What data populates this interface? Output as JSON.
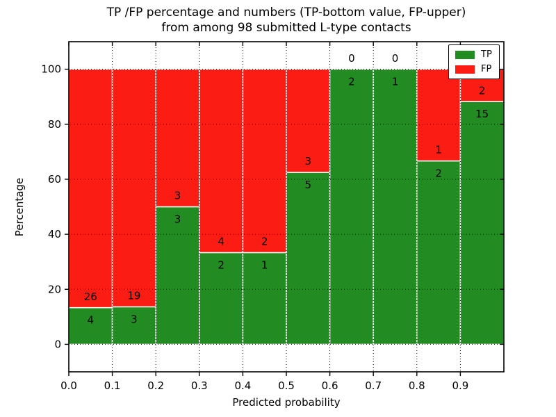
{
  "title": {
    "line1": "TP /FP percentage and numbers (TP-bottom value, FP-upper)",
    "line2": "from among 98 submitted L-type contacts"
  },
  "chart_data": {
    "type": "bar",
    "stacked": true,
    "normalized_to_percent": 100,
    "total_contacts": 98,
    "title": "TP /FP percentage and numbers (TP-bottom value, FP-upper) from among 98 submitted L-type contacts",
    "xlabel": "Predicted probability",
    "ylabel": "Percentage",
    "xlim": [
      0.0,
      1.0
    ],
    "ylim": [
      -10,
      110
    ],
    "bin_width": 0.1,
    "bin_starts": [
      0.0,
      0.1,
      0.2,
      0.3,
      0.4,
      0.5,
      0.6,
      0.7,
      0.8,
      0.9
    ],
    "xticks": [
      "0.0",
      "0.1",
      "0.2",
      "0.3",
      "0.4",
      "0.5",
      "0.6",
      "0.7",
      "0.8",
      "0.9"
    ],
    "yticks": [
      0,
      20,
      40,
      60,
      80,
      100
    ],
    "xgrid": [
      0.1,
      0.2,
      0.3,
      0.4,
      0.5,
      0.6,
      0.7,
      0.8,
      0.9
    ],
    "grid_style": "dotted",
    "legend_position": "upper right",
    "series": [
      {
        "name": "TP",
        "color": "#228b22",
        "counts": [
          4,
          3,
          3,
          2,
          1,
          5,
          2,
          1,
          2,
          15
        ]
      },
      {
        "name": "FP",
        "color": "#fb1c13",
        "counts": [
          26,
          19,
          3,
          4,
          2,
          3,
          0,
          0,
          1,
          2
        ]
      }
    ],
    "tp_percent_by_bin": [
      13.3,
      13.6,
      50.0,
      33.3,
      33.3,
      62.5,
      100.0,
      100.0,
      66.7,
      88.2
    ]
  },
  "colors": {
    "background": "#ffffff",
    "axis": "#000000",
    "grid": "#000000",
    "bar_edge": "#ffffff",
    "text": "#000000"
  }
}
